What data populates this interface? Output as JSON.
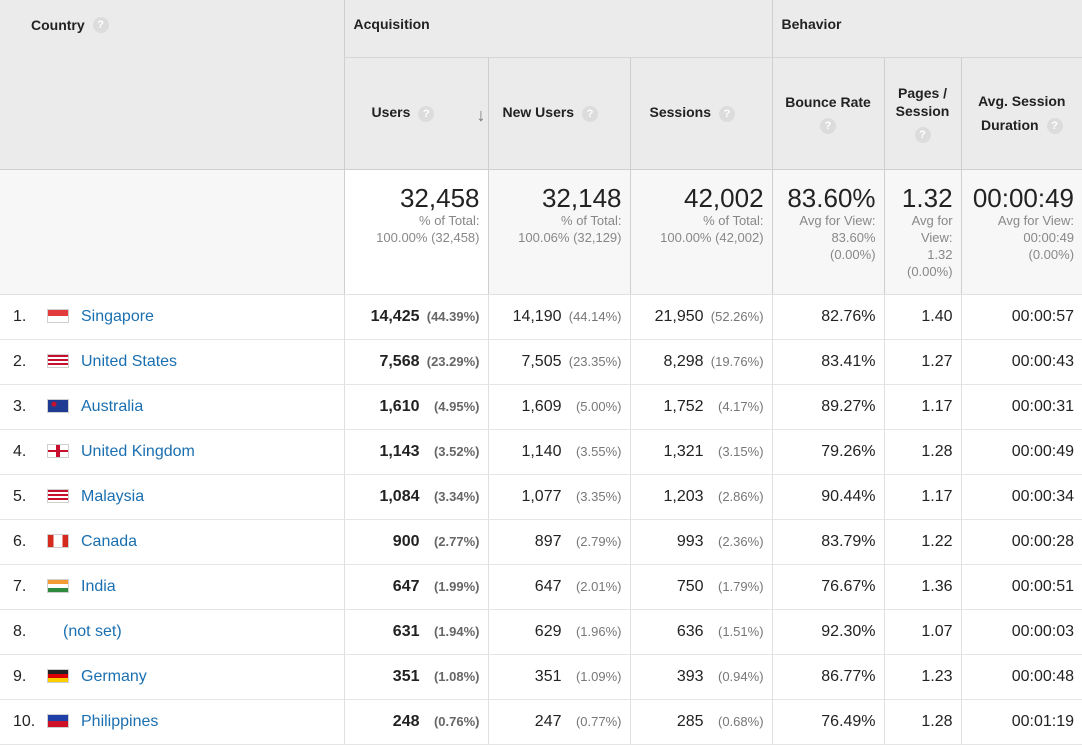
{
  "header": {
    "country": "Country",
    "acquisition": "Acquisition",
    "behavior": "Behavior",
    "help_glyph": "?",
    "sort_glyph": "↓",
    "users": "Users",
    "new_users": "New Users",
    "sessions": "Sessions",
    "bounce_rate": "Bounce Rate",
    "pages_line1": "Pages /",
    "pages_line2": "Session",
    "avg_line1": "Avg. Session",
    "avg_line2": "Duration"
  },
  "totals": {
    "users": {
      "value": "32,458",
      "l1": "% of Total:",
      "l2": "100.00% (32,458)"
    },
    "new_users": {
      "value": "32,148",
      "l1": "% of Total:",
      "l2": "100.06% (32,129)"
    },
    "sessions": {
      "value": "42,002",
      "l1": "% of Total:",
      "l2": "100.00% (42,002)"
    },
    "bounce_rate": {
      "value": "83.60%",
      "l1": "Avg for View:",
      "l2": "83.60%",
      "l3": "(0.00%)"
    },
    "pages": {
      "value": "1.32",
      "l1": "Avg for",
      "l2": "View:",
      "l3": "1.32",
      "l4": "(0.00%)"
    },
    "duration": {
      "value": "00:00:49",
      "l1": "Avg for View:",
      "l2": "00:00:49",
      "l3": "(0.00%)"
    }
  },
  "rows": [
    {
      "idx": "1.",
      "flag": "sg",
      "country": "Singapore",
      "users": "14,425",
      "users_pct": "(44.39%)",
      "new_users": "14,190",
      "new_pct": "(44.14%)",
      "sessions": "21,950",
      "sessions_pct": "(52.26%)",
      "bounce": "82.76%",
      "pages": "1.40",
      "duration": "00:00:57"
    },
    {
      "idx": "2.",
      "flag": "us",
      "country": "United States",
      "users": "7,568",
      "users_pct": "(23.29%)",
      "new_users": "7,505",
      "new_pct": "(23.35%)",
      "sessions": "8,298",
      "sessions_pct": "(19.76%)",
      "bounce": "83.41%",
      "pages": "1.27",
      "duration": "00:00:43"
    },
    {
      "idx": "3.",
      "flag": "au",
      "country": "Australia",
      "users": "1,610",
      "users_pct": "(4.95%)",
      "new_users": "1,609",
      "new_pct": "(5.00%)",
      "sessions": "1,752",
      "sessions_pct": "(4.17%)",
      "bounce": "89.27%",
      "pages": "1.17",
      "duration": "00:00:31"
    },
    {
      "idx": "4.",
      "flag": "gb",
      "country": "United Kingdom",
      "users": "1,143",
      "users_pct": "(3.52%)",
      "new_users": "1,140",
      "new_pct": "(3.55%)",
      "sessions": "1,321",
      "sessions_pct": "(3.15%)",
      "bounce": "79.26%",
      "pages": "1.28",
      "duration": "00:00:49"
    },
    {
      "idx": "5.",
      "flag": "my",
      "country": "Malaysia",
      "users": "1,084",
      "users_pct": "(3.34%)",
      "new_users": "1,077",
      "new_pct": "(3.35%)",
      "sessions": "1,203",
      "sessions_pct": "(2.86%)",
      "bounce": "90.44%",
      "pages": "1.17",
      "duration": "00:00:34"
    },
    {
      "idx": "6.",
      "flag": "ca",
      "country": "Canada",
      "users": "900",
      "users_pct": "(2.77%)",
      "new_users": "897",
      "new_pct": "(2.79%)",
      "sessions": "993",
      "sessions_pct": "(2.36%)",
      "bounce": "83.79%",
      "pages": "1.22",
      "duration": "00:00:28"
    },
    {
      "idx": "7.",
      "flag": "in",
      "country": "India",
      "users": "647",
      "users_pct": "(1.99%)",
      "new_users": "647",
      "new_pct": "(2.01%)",
      "sessions": "750",
      "sessions_pct": "(1.79%)",
      "bounce": "76.67%",
      "pages": "1.36",
      "duration": "00:00:51"
    },
    {
      "idx": "8.",
      "flag": "none",
      "country": "(not set)",
      "users": "631",
      "users_pct": "(1.94%)",
      "new_users": "629",
      "new_pct": "(1.96%)",
      "sessions": "636",
      "sessions_pct": "(1.51%)",
      "bounce": "92.30%",
      "pages": "1.07",
      "duration": "00:00:03"
    },
    {
      "idx": "9.",
      "flag": "de",
      "country": "Germany",
      "users": "351",
      "users_pct": "(1.08%)",
      "new_users": "351",
      "new_pct": "(1.09%)",
      "sessions": "393",
      "sessions_pct": "(0.94%)",
      "bounce": "86.77%",
      "pages": "1.23",
      "duration": "00:00:48"
    },
    {
      "idx": "10.",
      "flag": "ph",
      "country": "Philippines",
      "users": "248",
      "users_pct": "(0.76%)",
      "new_users": "247",
      "new_pct": "(0.77%)",
      "sessions": "285",
      "sessions_pct": "(0.68%)",
      "bounce": "76.49%",
      "pages": "1.28",
      "duration": "00:01:19"
    }
  ]
}
